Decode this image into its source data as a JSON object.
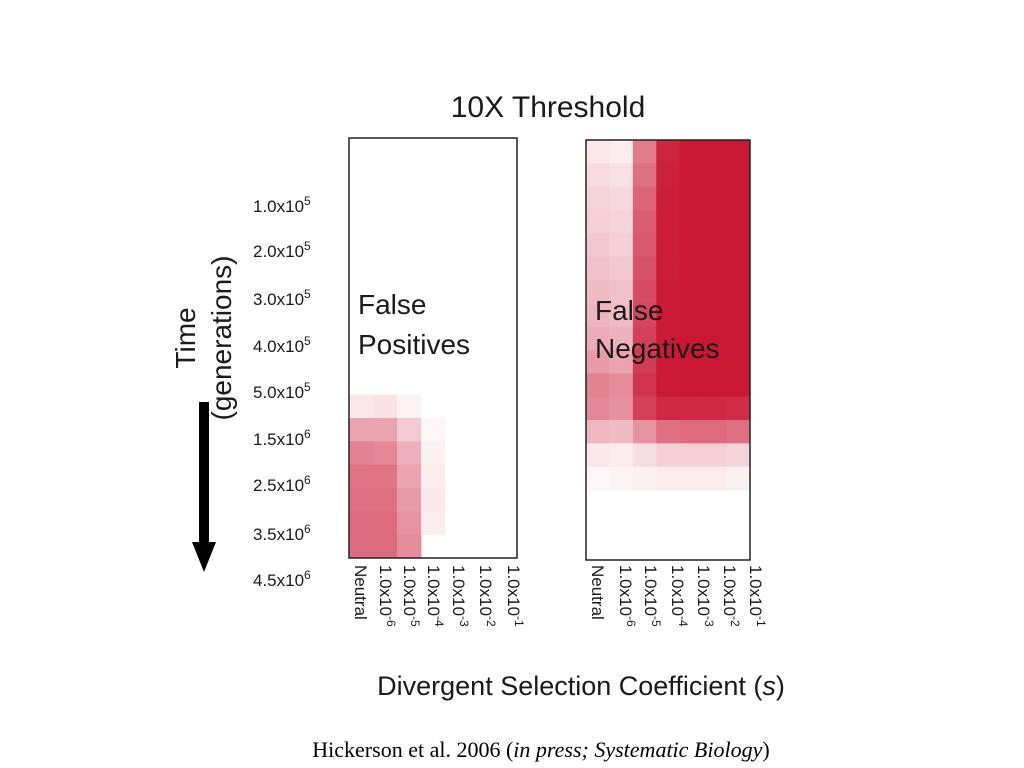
{
  "chart_data": {
    "type": "heatmap",
    "title": "10X Threshold",
    "xlabel_main": "Divergent Selection Coefficient (",
    "xlabel_var": "s",
    "xlabel_close": ")",
    "ylabel_line1": "Time",
    "ylabel_line2": "(generations)",
    "x_categories": [
      {
        "base": "Neutral",
        "exp": ""
      },
      {
        "base": "1.0x10",
        "exp": "-6"
      },
      {
        "base": "1.0x10",
        "exp": "-5"
      },
      {
        "base": "1.0x10",
        "exp": "-4"
      },
      {
        "base": "1.0x10",
        "exp": "-3"
      },
      {
        "base": "1.0x10",
        "exp": "-2"
      },
      {
        "base": "1.0x10",
        "exp": "-1"
      }
    ],
    "y_categories": [
      {
        "base": "1.0x10",
        "exp": "5"
      },
      {
        "base": "2.0x10",
        "exp": "5"
      },
      {
        "base": "3.0x10",
        "exp": "5"
      },
      {
        "base": "4.0x10",
        "exp": "5"
      },
      {
        "base": "5.0x10",
        "exp": "5"
      },
      {
        "base": "1.5x10",
        "exp": "6"
      },
      {
        "base": "2.5x10",
        "exp": "6"
      },
      {
        "base": "3.5x10",
        "exp": "6"
      },
      {
        "base": "4.5x10",
        "exp": "6"
      }
    ],
    "color_low": "#ffffff",
    "color_high": "#c8102e",
    "panels": [
      {
        "label_line1": "False",
        "label_line2": "Positives",
        "values": [
          [
            0,
            0,
            0,
            0,
            0,
            0,
            0
          ],
          [
            0,
            0,
            0,
            0,
            0,
            0,
            0
          ],
          [
            0,
            0,
            0,
            0,
            0,
            0,
            0
          ],
          [
            0,
            0,
            0,
            0,
            0,
            0,
            0
          ],
          [
            0,
            0,
            0,
            0,
            0,
            0,
            0
          ],
          [
            0,
            0,
            0,
            0,
            0,
            0,
            0
          ],
          [
            0,
            0,
            0,
            0,
            0,
            0,
            0
          ],
          [
            0,
            0,
            0,
            0,
            0,
            0,
            0
          ],
          [
            0,
            0,
            0,
            0,
            0,
            0,
            0
          ],
          [
            0,
            0,
            0,
            0,
            0,
            0,
            0
          ],
          [
            0,
            0,
            0,
            0,
            0,
            0,
            0
          ],
          [
            0.1,
            0.12,
            0.05,
            0,
            0,
            0,
            0
          ],
          [
            0.38,
            0.38,
            0.22,
            0.04,
            0,
            0,
            0
          ],
          [
            0.52,
            0.5,
            0.33,
            0.06,
            0,
            0,
            0
          ],
          [
            0.58,
            0.58,
            0.38,
            0.08,
            0,
            0,
            0
          ],
          [
            0.6,
            0.6,
            0.42,
            0.09,
            0,
            0,
            0
          ],
          [
            0.62,
            0.62,
            0.45,
            0.08,
            0,
            0,
            0
          ],
          [
            0.62,
            0.62,
            0.48,
            0,
            0,
            0,
            0
          ]
        ]
      },
      {
        "label_line1": "False",
        "label_line2": "Negatives",
        "values": [
          [
            0.1,
            0.08,
            0.55,
            0.92,
            0.97,
            0.97,
            0.97
          ],
          [
            0.15,
            0.13,
            0.6,
            0.93,
            0.97,
            0.97,
            0.97
          ],
          [
            0.18,
            0.16,
            0.65,
            0.94,
            0.97,
            0.97,
            0.97
          ],
          [
            0.2,
            0.18,
            0.68,
            0.95,
            0.97,
            0.97,
            0.97
          ],
          [
            0.23,
            0.2,
            0.7,
            0.95,
            0.97,
            0.97,
            0.97
          ],
          [
            0.26,
            0.23,
            0.73,
            0.95,
            0.97,
            0.97,
            0.97
          ],
          [
            0.28,
            0.26,
            0.75,
            0.96,
            0.97,
            0.97,
            0.97
          ],
          [
            0.31,
            0.28,
            0.77,
            0.96,
            0.97,
            0.97,
            0.97
          ],
          [
            0.35,
            0.32,
            0.8,
            0.96,
            0.97,
            0.97,
            0.97
          ],
          [
            0.42,
            0.38,
            0.82,
            0.96,
            0.97,
            0.97,
            0.97
          ],
          [
            0.52,
            0.48,
            0.85,
            0.96,
            0.97,
            0.97,
            0.97
          ],
          [
            0.5,
            0.46,
            0.8,
            0.9,
            0.9,
            0.9,
            0.88
          ],
          [
            0.3,
            0.28,
            0.45,
            0.6,
            0.62,
            0.62,
            0.6
          ],
          [
            0.1,
            0.08,
            0.14,
            0.2,
            0.2,
            0.2,
            0.18
          ],
          [
            0.04,
            0.05,
            0.06,
            0.08,
            0.08,
            0.08,
            0.06
          ],
          [
            0,
            0,
            0,
            0,
            0,
            0,
            0
          ],
          [
            0,
            0,
            0,
            0,
            0,
            0,
            0
          ],
          [
            0,
            0,
            0,
            0,
            0,
            0,
            0
          ]
        ]
      }
    ],
    "grid": false,
    "legend": "none"
  },
  "citation": {
    "authors": "Hickerson et al. 2006 (",
    "italic": "in press; Systematic Biology",
    "close": ")"
  }
}
